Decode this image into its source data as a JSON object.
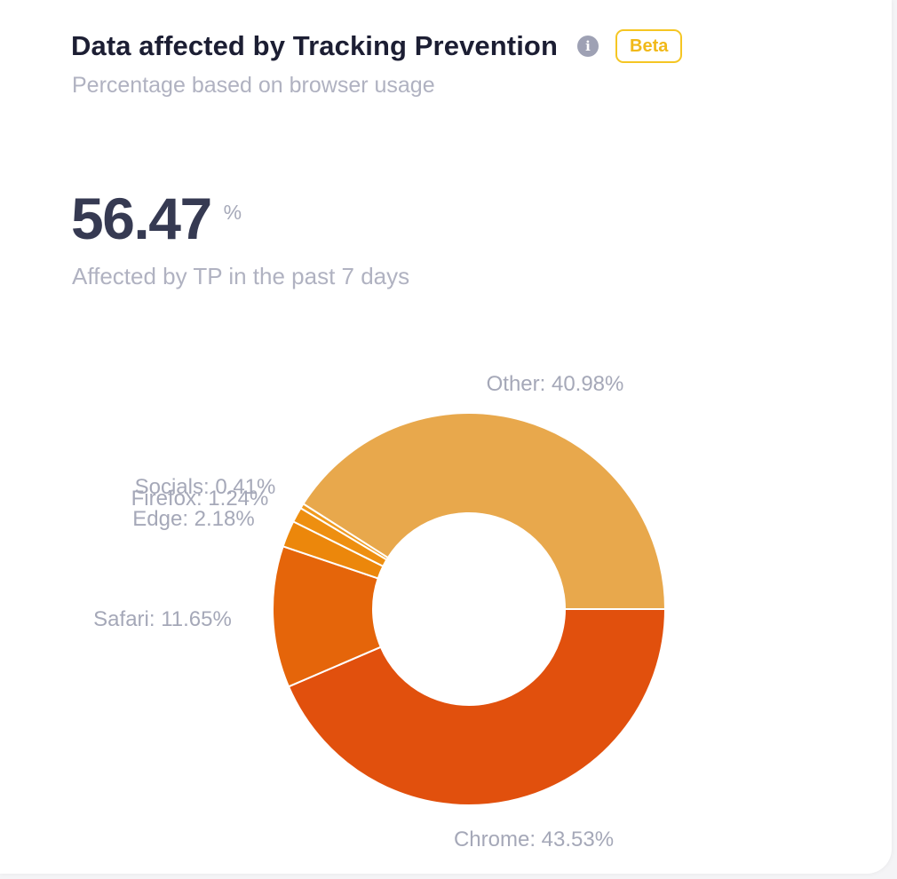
{
  "card": {
    "title": "Data affected by Tracking Prevention",
    "info_icon": "info-icon",
    "badge": "Beta",
    "subtitle": "Percentage based on browser usage"
  },
  "kpi": {
    "value": "56.47",
    "unit": "%",
    "caption": "Affected by TP in the past 7 days"
  },
  "colors": {
    "title": "#1c1e33",
    "muted": "#b0b2c1",
    "badge": "#f5c623"
  },
  "chart_data": {
    "type": "pie",
    "donut": true,
    "series": [
      {
        "name": "Chrome",
        "value": 43.53,
        "label": "Chrome: 43.53%",
        "color": "#e1500d"
      },
      {
        "name": "Safari",
        "value": 11.65,
        "label": "Safari: 11.65%",
        "color": "#e5650a"
      },
      {
        "name": "Edge",
        "value": 2.18,
        "label": "Edge: 2.18%",
        "color": "#ec870b"
      },
      {
        "name": "Firefox",
        "value": 1.24,
        "label": "Firefox: 1.24%",
        "color": "#ee8f10"
      },
      {
        "name": "Socials",
        "value": 0.41,
        "label": "Socials: 0.41%",
        "color": "#f09a1e"
      },
      {
        "name": "Other",
        "value": 40.98,
        "label": "Other: 40.98%",
        "color": "#e8a84c"
      }
    ]
  }
}
